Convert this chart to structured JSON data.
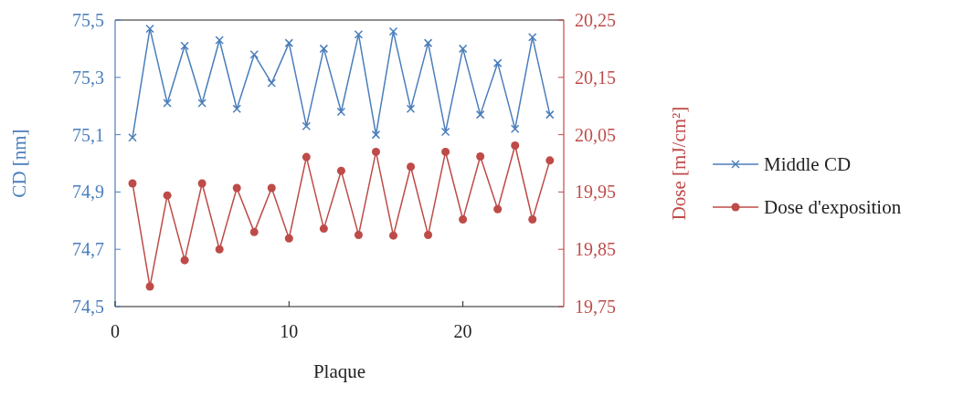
{
  "chart_data": {
    "type": "line",
    "xlabel": "Plaque",
    "ylabel": "CD [nm]",
    "y2label": "Dose [mJ/cm²]",
    "x": [
      1,
      2,
      3,
      4,
      5,
      6,
      7,
      8,
      9,
      10,
      11,
      12,
      13,
      14,
      15,
      16,
      17,
      18,
      19,
      20,
      21,
      22,
      23,
      24,
      25
    ],
    "series": [
      {
        "name": "Middle CD",
        "color": "#4a7ebb",
        "marker": "cross",
        "values": [
          75.09,
          75.47,
          75.21,
          75.41,
          75.21,
          75.43,
          75.19,
          75.38,
          75.28,
          75.42,
          75.13,
          75.4,
          75.18,
          75.45,
          75.1,
          75.46,
          75.19,
          75.42,
          75.11,
          75.4,
          75.17,
          75.35,
          75.12,
          75.44,
          75.17
        ]
      },
      {
        "name": "Dose d'exposition",
        "color": "#be4b48",
        "marker": "circle",
        "axis": "y2",
        "values": [
          19.965,
          19.785,
          19.944,
          19.831,
          19.965,
          19.85,
          19.957,
          19.88,
          19.957,
          19.869,
          20.011,
          19.886,
          19.987,
          19.875,
          20.02,
          19.874,
          19.994,
          19.875,
          20.02,
          19.902,
          20.012,
          19.92,
          20.031,
          19.902,
          20.005
        ]
      }
    ],
    "xlim": [
      0,
      25.8
    ],
    "xticks": [
      0,
      10,
      20
    ],
    "ylim": [
      74.5,
      75.5
    ],
    "yticks": [
      {
        "value": 74.5,
        "label": "74,5"
      },
      {
        "value": 74.7,
        "label": "74,7"
      },
      {
        "value": 74.9,
        "label": "74,9"
      },
      {
        "value": 75.1,
        "label": "75,1"
      },
      {
        "value": 75.3,
        "label": "75,3"
      },
      {
        "value": 75.5,
        "label": "75,5"
      }
    ],
    "y2lim": [
      19.75,
      20.25
    ],
    "y2ticks": [
      {
        "value": 19.75,
        "label": "19,75"
      },
      {
        "value": 19.85,
        "label": "19,85"
      },
      {
        "value": 19.95,
        "label": "19,95"
      },
      {
        "value": 20.05,
        "label": "20,05"
      },
      {
        "value": 20.15,
        "label": "20,15"
      },
      {
        "value": 20.25,
        "label": "20,25"
      }
    ],
    "grid": false,
    "legend": "right",
    "line_style": "solid"
  }
}
